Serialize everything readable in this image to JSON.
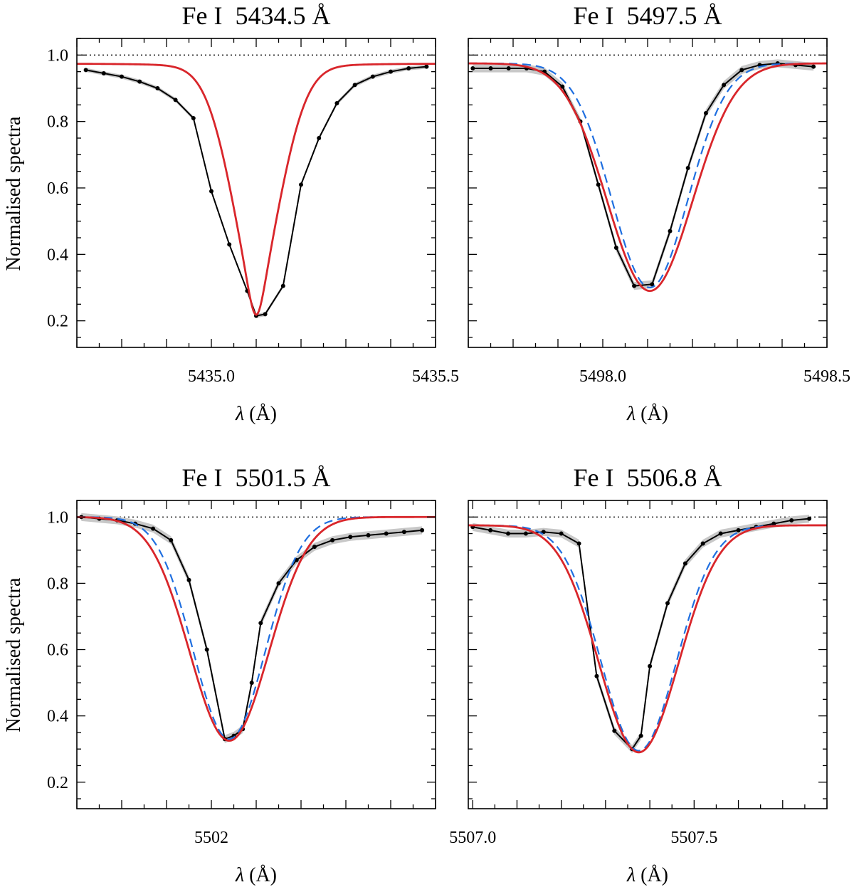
{
  "figure": {
    "y_axis_label": "Normalised spectra",
    "x_axis_label": "λ (Å)",
    "x_axis_label_italic_part": "λ",
    "x_axis_label_unit_part": " (Å)"
  },
  "colors": {
    "observed": "#000000",
    "observed_band": "#c8c8c8",
    "model_dashed": "#1f6fe0",
    "model_solid": "#d9262b",
    "reference_line": "#000000"
  },
  "chart_data": [
    {
      "type": "line",
      "title": "Fe I  5434.5 Å",
      "xlabel": "λ (Å)",
      "ylabel": "Normalised spectra",
      "xlim": [
        5434.7,
        5435.5
      ],
      "ylim": [
        0.12,
        1.05
      ],
      "x_ticks": [
        5435.0,
        5435.5
      ],
      "x_tick_labels": [
        "5435.0",
        "5435.5"
      ],
      "y_ticks": [
        0.2,
        0.4,
        0.6,
        0.8,
        1.0
      ],
      "y_tick_labels": [
        "0.2",
        "0.4",
        "0.6",
        "0.8",
        "1.0"
      ],
      "reference_line_y": 1.0,
      "series": [
        {
          "name": "observed",
          "style": "points-line",
          "x": [
            5434.72,
            5434.76,
            5434.8,
            5434.84,
            5434.88,
            5434.92,
            5434.96,
            5435.0,
            5435.04,
            5435.08,
            5435.1,
            5435.12,
            5435.16,
            5435.2,
            5435.24,
            5435.28,
            5435.32,
            5435.36,
            5435.4,
            5435.44,
            5435.48
          ],
          "y": [
            0.955,
            0.945,
            0.935,
            0.92,
            0.9,
            0.865,
            0.81,
            0.59,
            0.43,
            0.29,
            0.215,
            0.22,
            0.305,
            0.61,
            0.75,
            0.855,
            0.91,
            0.935,
            0.95,
            0.96,
            0.965
          ],
          "band": 0.006
        },
        {
          "name": "model-dashed",
          "style": "dashed",
          "profile": {
            "continuum": 0.975,
            "center": 5435.1,
            "depth": 0.757,
            "width": 0.06,
            "gamma": 0.03
          }
        },
        {
          "name": "model-solid",
          "style": "solid",
          "profile": {
            "continuum": 0.975,
            "center": 5435.1,
            "depth": 0.757,
            "width": 0.06,
            "gamma": 0.03
          }
        }
      ]
    },
    {
      "type": "line",
      "title": "Fe I  5497.5 Å",
      "xlabel": "λ (Å)",
      "ylabel": "",
      "xlim": [
        5497.7,
        5498.5
      ],
      "ylim": [
        0.12,
        1.05
      ],
      "x_ticks": [
        5498.0,
        5498.5
      ],
      "x_tick_labels": [
        "5498.0",
        "5498.5"
      ],
      "y_ticks": [
        0.2,
        0.4,
        0.6,
        0.8,
        1.0
      ],
      "y_tick_labels": [],
      "reference_line_y": 1.0,
      "series": [
        {
          "name": "observed",
          "style": "points-line",
          "x": [
            5497.71,
            5497.75,
            5497.79,
            5497.83,
            5497.87,
            5497.91,
            5497.95,
            5497.99,
            5498.03,
            5498.07,
            5498.11,
            5498.15,
            5498.19,
            5498.23,
            5498.27,
            5498.31,
            5498.35,
            5498.39,
            5498.43,
            5498.47
          ],
          "y": [
            0.96,
            0.96,
            0.96,
            0.96,
            0.95,
            0.905,
            0.8,
            0.61,
            0.42,
            0.305,
            0.31,
            0.47,
            0.66,
            0.825,
            0.91,
            0.955,
            0.97,
            0.975,
            0.97,
            0.965
          ],
          "band": 0.012
        },
        {
          "name": "model-dashed",
          "style": "dashed",
          "profile": {
            "continuum": 0.975,
            "center": 5498.105,
            "depth": 0.675,
            "width": 0.085,
            "gamma": 0.0
          }
        },
        {
          "name": "model-solid",
          "style": "solid",
          "profile": {
            "continuum": 0.975,
            "center": 5498.105,
            "depth": 0.685,
            "width": 0.095,
            "gamma": 0.0
          }
        }
      ]
    },
    {
      "type": "line",
      "title": "Fe I  5501.5 Å",
      "xlabel": "λ (Å)",
      "ylabel": "Normalised spectra",
      "xlim": [
        5501.7,
        5502.5
      ],
      "ylim": [
        0.12,
        1.05
      ],
      "x_ticks": [
        5502.0
      ],
      "x_tick_labels": [
        "5502"
      ],
      "y_ticks": [
        0.2,
        0.4,
        0.6,
        0.8,
        1.0
      ],
      "y_tick_labels": [
        "0.2",
        "0.4",
        "0.6",
        "0.8",
        "1.0"
      ],
      "reference_line_y": 1.0,
      "series": [
        {
          "name": "observed",
          "style": "points-line",
          "x": [
            5501.71,
            5501.75,
            5501.79,
            5501.83,
            5501.87,
            5501.91,
            5501.95,
            5501.99,
            5502.03,
            5502.05,
            5502.07,
            5502.09,
            5502.11,
            5502.15,
            5502.19,
            5502.23,
            5502.27,
            5502.31,
            5502.35,
            5502.39,
            5502.43,
            5502.47
          ],
          "y": [
            1.0,
            0.995,
            0.99,
            0.98,
            0.965,
            0.93,
            0.81,
            0.6,
            0.33,
            0.34,
            0.36,
            0.5,
            0.68,
            0.8,
            0.87,
            0.91,
            0.93,
            0.94,
            0.945,
            0.95,
            0.955,
            0.96
          ],
          "band": 0.012
        },
        {
          "name": "model-dashed",
          "style": "dashed",
          "profile": {
            "continuum": 1.0,
            "center": 5502.04,
            "depth": 0.67,
            "width": 0.08,
            "gamma": 0.0
          }
        },
        {
          "name": "model-solid",
          "style": "solid",
          "profile": {
            "continuum": 1.0,
            "center": 5502.04,
            "depth": 0.675,
            "width": 0.088,
            "gamma": 0.0
          }
        }
      ]
    },
    {
      "type": "line",
      "title": "Fe I  5506.8 Å",
      "xlabel": "λ (Å)",
      "ylabel": "",
      "xlim": [
        5506.99,
        5507.8
      ],
      "ylim": [
        0.12,
        1.05
      ],
      "x_ticks": [
        5507.0,
        5507.5
      ],
      "x_tick_labels": [
        "5507.0",
        "5507.5"
      ],
      "y_ticks": [
        0.2,
        0.4,
        0.6,
        0.8,
        1.0
      ],
      "y_tick_labels": [],
      "reference_line_y": 1.0,
      "series": [
        {
          "name": "observed",
          "style": "points-line",
          "x": [
            5507.0,
            5507.04,
            5507.08,
            5507.12,
            5507.16,
            5507.2,
            5507.24,
            5507.28,
            5507.32,
            5507.36,
            5507.38,
            5507.4,
            5507.44,
            5507.48,
            5507.52,
            5507.56,
            5507.6,
            5507.64,
            5507.68,
            5507.72,
            5507.76
          ],
          "y": [
            0.97,
            0.96,
            0.95,
            0.95,
            0.955,
            0.95,
            0.92,
            0.52,
            0.355,
            0.3,
            0.34,
            0.55,
            0.74,
            0.86,
            0.92,
            0.95,
            0.96,
            0.97,
            0.98,
            0.99,
            0.995
          ],
          "band": 0.012
        },
        {
          "name": "model-dashed",
          "style": "dashed",
          "profile": {
            "continuum": 0.975,
            "center": 5507.375,
            "depth": 0.68,
            "width": 0.085,
            "gamma": 0.0
          }
        },
        {
          "name": "model-solid",
          "style": "solid",
          "profile": {
            "continuum": 0.975,
            "center": 5507.375,
            "depth": 0.685,
            "width": 0.09,
            "gamma": 0.0
          }
        }
      ]
    }
  ]
}
